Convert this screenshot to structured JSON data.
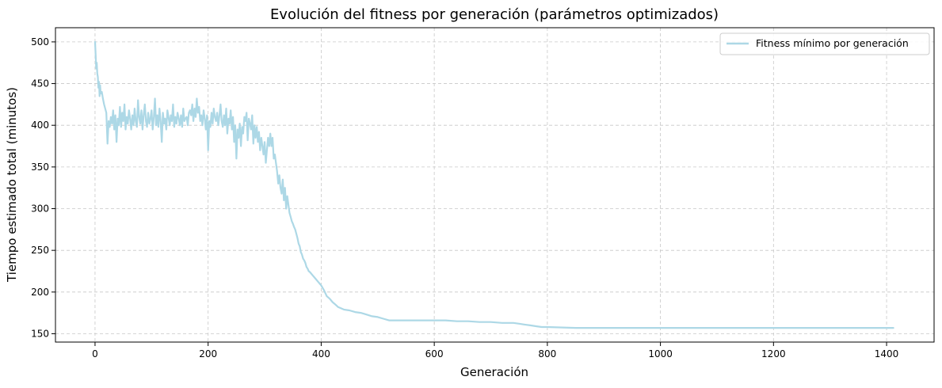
{
  "chart_data": {
    "type": "line",
    "title": "Evolución del fitness por generación (parámetros optimizados)",
    "xlabel": "Generación",
    "ylabel": "Tiempo estimado total (minutos)",
    "xlim": [
      -70,
      1484
    ],
    "ylim": [
      140,
      517
    ],
    "xticks": [
      0,
      200,
      400,
      600,
      800,
      1000,
      1200,
      1400
    ],
    "yticks": [
      150,
      200,
      250,
      300,
      350,
      400,
      450,
      500
    ],
    "grid": true,
    "legend_position": "top-right",
    "series": [
      {
        "name": "Fitness mínimo por generación",
        "color": "#add8e6",
        "x": [
          0,
          1,
          2,
          3,
          4,
          5,
          6,
          7,
          8,
          9,
          10,
          12,
          14,
          16,
          18,
          20,
          22,
          24,
          26,
          28,
          30,
          32,
          34,
          36,
          38,
          40,
          42,
          44,
          46,
          48,
          50,
          52,
          54,
          56,
          58,
          60,
          62,
          64,
          66,
          68,
          70,
          72,
          74,
          76,
          78,
          80,
          82,
          84,
          86,
          88,
          90,
          92,
          94,
          96,
          98,
          100,
          102,
          104,
          106,
          108,
          110,
          112,
          114,
          116,
          118,
          120,
          122,
          124,
          126,
          128,
          130,
          132,
          134,
          136,
          138,
          140,
          142,
          144,
          146,
          148,
          150,
          152,
          154,
          156,
          158,
          160,
          162,
          164,
          166,
          168,
          170,
          172,
          174,
          176,
          178,
          180,
          182,
          184,
          186,
          188,
          190,
          192,
          194,
          196,
          198,
          200,
          202,
          204,
          206,
          208,
          210,
          212,
          214,
          216,
          218,
          220,
          222,
          224,
          226,
          228,
          230,
          232,
          234,
          236,
          238,
          240,
          242,
          244,
          246,
          248,
          250,
          252,
          254,
          256,
          258,
          260,
          262,
          264,
          266,
          268,
          270,
          272,
          274,
          276,
          278,
          280,
          282,
          284,
          286,
          288,
          290,
          292,
          294,
          296,
          298,
          300,
          302,
          304,
          306,
          308,
          310,
          312,
          314,
          316,
          318,
          320,
          322,
          324,
          326,
          328,
          330,
          332,
          334,
          336,
          338,
          340,
          342,
          344,
          346,
          348,
          350,
          352,
          354,
          356,
          358,
          360,
          362,
          364,
          366,
          368,
          370,
          372,
          374,
          376,
          378,
          380,
          385,
          390,
          395,
          400,
          405,
          410,
          415,
          420,
          425,
          430,
          440,
          450,
          460,
          470,
          480,
          490,
          500,
          510,
          520,
          540,
          560,
          580,
          600,
          620,
          640,
          660,
          680,
          700,
          720,
          740,
          750,
          760,
          770,
          780,
          790,
          800,
          850,
          900,
          1000,
          1100,
          1200,
          1300,
          1412
        ],
        "y": [
          500,
          485,
          468,
          475,
          462,
          458,
          445,
          452,
          435,
          448,
          438,
          440,
          432,
          425,
          420,
          415,
          378,
          405,
          398,
          410,
          402,
          418,
          395,
          412,
          380,
          408,
          400,
          422,
          398,
          415,
          405,
          425,
          395,
          410,
          402,
          418,
          408,
          395,
          412,
          400,
          420,
          405,
          398,
          430,
          410,
          402,
          418,
          395,
          412,
          425,
          405,
          398,
          415,
          402,
          408,
          418,
          395,
          410,
          432,
          400,
          412,
          398,
          420,
          405,
          380,
          415,
          402,
          408,
          395,
          418,
          410,
          400,
          412,
          405,
          425,
          398,
          410,
          402,
          415,
          408,
          400,
          412,
          398,
          420,
          405,
          408,
          410,
          400,
          415,
          418,
          412,
          425,
          405,
          420,
          410,
          432,
          415,
          422,
          405,
          412,
          400,
          418,
          408,
          395,
          412,
          370,
          405,
          398,
          415,
          402,
          420,
          410,
          405,
          415,
          400,
          412,
          425,
          405,
          398,
          412,
          400,
          420,
          390,
          408,
          402,
          418,
          395,
          410,
          380,
          400,
          360,
          395,
          385,
          402,
          375,
          398,
          390,
          410,
          405,
          415,
          382,
          408,
          402,
          395,
          412,
          378,
          400,
          385,
          398,
          380,
          392,
          370,
          385,
          375,
          365,
          380,
          355,
          370,
          385,
          375,
          390,
          375,
          385,
          360,
          365,
          355,
          345,
          330,
          340,
          325,
          318,
          335,
          310,
          325,
          300,
          315,
          305,
          295,
          290,
          285,
          282,
          278,
          275,
          270,
          265,
          258,
          255,
          248,
          245,
          240,
          238,
          235,
          230,
          228,
          225,
          224,
          220,
          216,
          212,
          208,
          202,
          195,
          192,
          188,
          185,
          182,
          179,
          178,
          176,
          175,
          173,
          171,
          170,
          168,
          166,
          166,
          166,
          166,
          166,
          166,
          165,
          165,
          164,
          164,
          163,
          163,
          162,
          161,
          160,
          159,
          158,
          158,
          157,
          157,
          157,
          157,
          157,
          157,
          157
        ]
      }
    ]
  }
}
